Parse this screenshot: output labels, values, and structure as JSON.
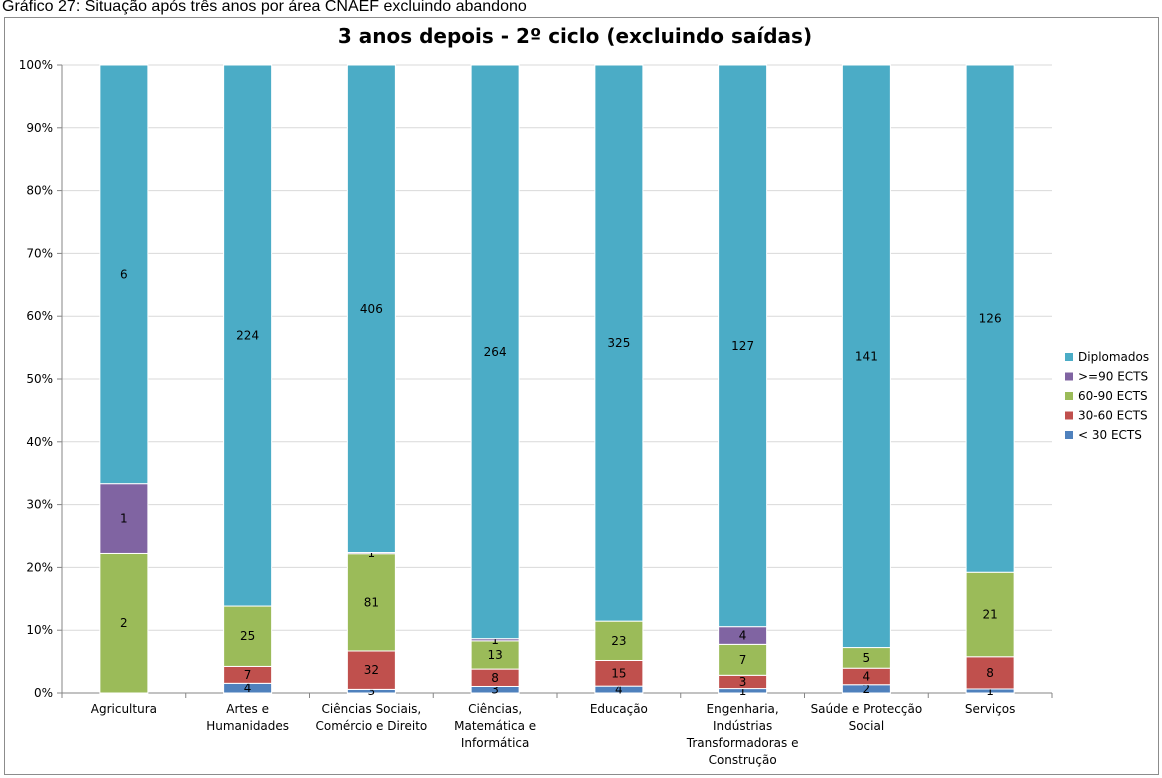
{
  "figure_caption": "Gráfico 27: Situação após três anos por área CNAEF excluindo abandono",
  "chart_data": {
    "type": "bar",
    "stacked": true,
    "normalized": true,
    "title": "3 anos depois - 2º ciclo (excluindo saídas)",
    "xlabel": "",
    "ylabel": "",
    "ylim": [
      0,
      100
    ],
    "y_ticks": [
      "0%",
      "10%",
      "20%",
      "30%",
      "40%",
      "50%",
      "60%",
      "70%",
      "80%",
      "90%",
      "100%"
    ],
    "grid": true,
    "legend_position": "right",
    "categories": [
      [
        "Agricultura"
      ],
      [
        "Artes e",
        "Humanidades"
      ],
      [
        "Ciências Sociais,",
        "Comércio e Direito"
      ],
      [
        "Ciências,",
        "Matemática e",
        "Informática"
      ],
      [
        "Educação"
      ],
      [
        "Engenharia,",
        "Indústrias",
        "Transformadoras e",
        "Construção"
      ],
      [
        "Saúde e Protecção",
        "Social"
      ],
      [
        "Serviços"
      ]
    ],
    "series": [
      {
        "name": "< 30 ECTS",
        "color": "#4f81bd",
        "values": [
          0,
          4,
          3,
          3,
          4,
          1,
          2,
          1
        ]
      },
      {
        "name": "30-60 ECTS",
        "color": "#c0504d",
        "values": [
          0,
          7,
          32,
          8,
          15,
          3,
          4,
          8
        ]
      },
      {
        "name": "60-90 ECTS",
        "color": "#9bbb59",
        "values": [
          2,
          25,
          81,
          13,
          23,
          7,
          5,
          21
        ]
      },
      {
        "name": ">=90 ECTS",
        "color": "#8064a2",
        "values": [
          1,
          0,
          1,
          1,
          0,
          4,
          0,
          0
        ]
      },
      {
        "name": "Diplomados",
        "color": "#4bacc6",
        "values": [
          6,
          224,
          406,
          264,
          325,
          127,
          141,
          126
        ]
      }
    ]
  }
}
